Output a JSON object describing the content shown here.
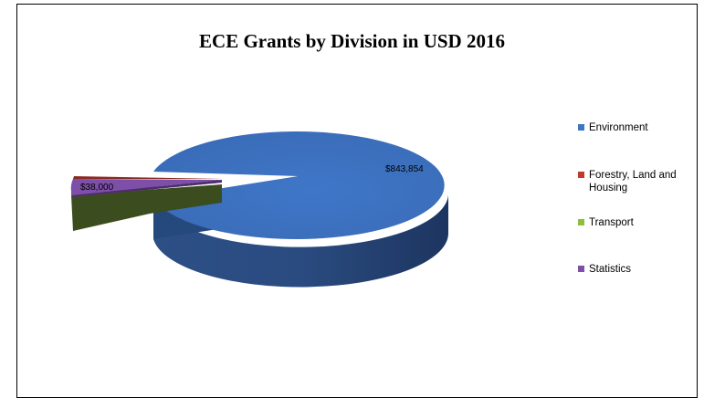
{
  "chart_data": {
    "type": "pie",
    "title": "ECE Grants by Division in USD 2016",
    "slices": [
      {
        "label": "Environment",
        "value": 843854,
        "value_label": "$843,854",
        "color": "#3f74c4"
      },
      {
        "label": "Forestry, Land and Housing",
        "value": 2000,
        "value_label": "",
        "color": "#c0392b"
      },
      {
        "label": "Transport",
        "value": 30000,
        "value_label": "",
        "color": "#8cbf3f"
      },
      {
        "label": "Statistics",
        "value": 38000,
        "value_label": "$38,000",
        "color": "#7d4fa8"
      }
    ],
    "legend": {
      "placement": "right"
    },
    "style": "3d-exploded"
  }
}
